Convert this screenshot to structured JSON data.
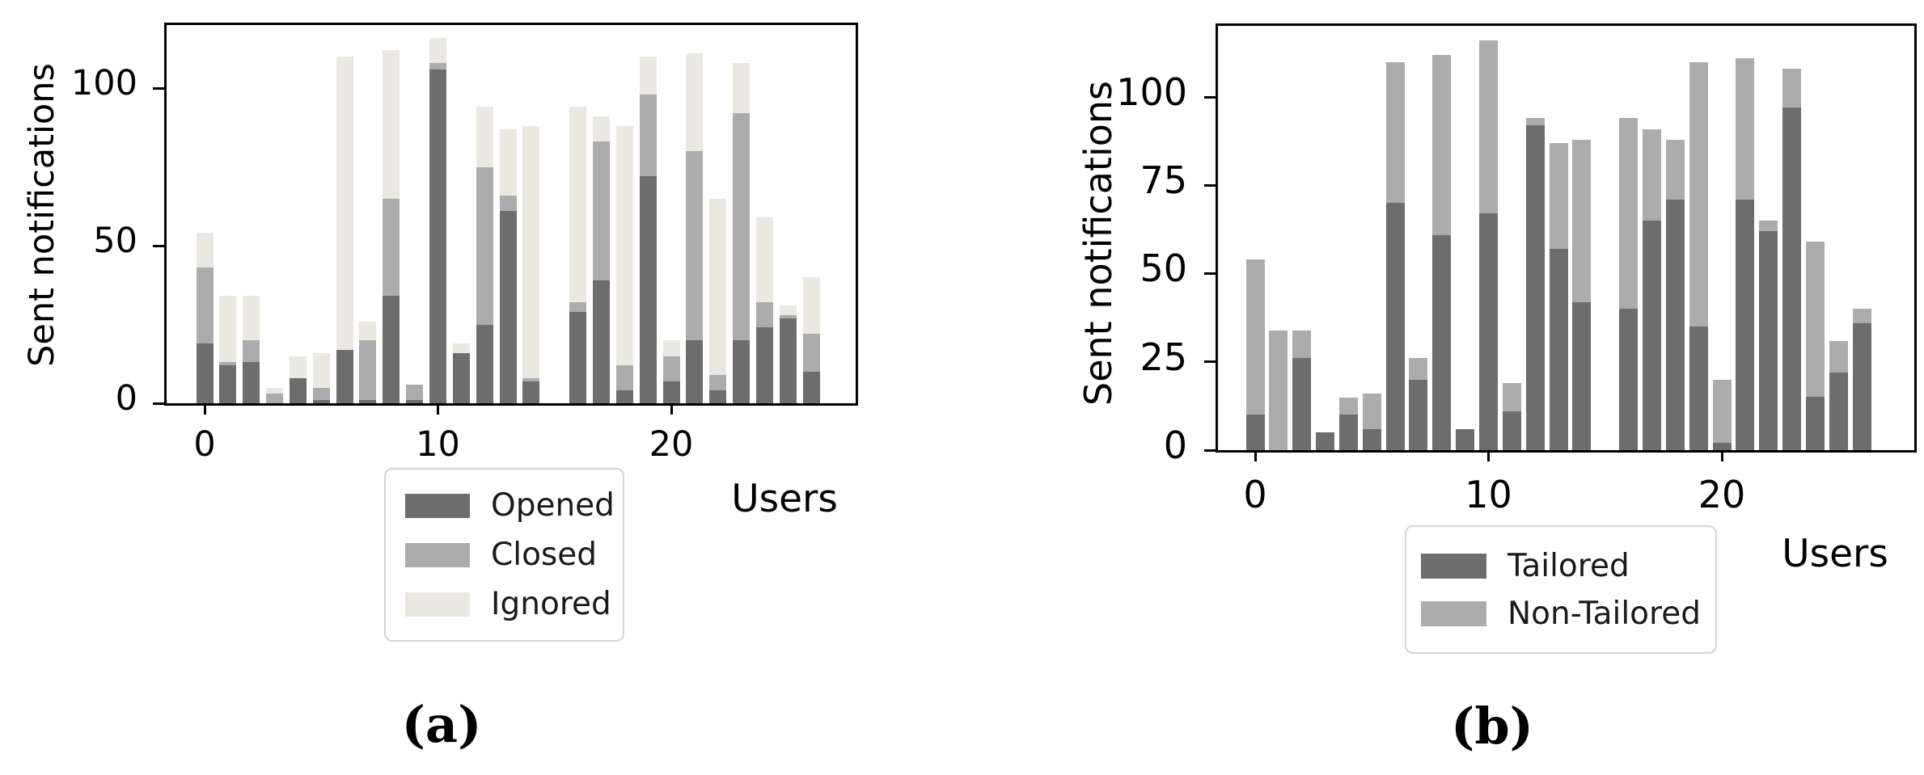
{
  "page": {
    "background": "#ffffff"
  },
  "chart_data": [
    {
      "type": "bar",
      "stacked": true,
      "title": "(a)",
      "xlabel": "Users",
      "ylabel": "Sent notifications",
      "x": [
        0,
        1,
        2,
        3,
        4,
        5,
        6,
        7,
        8,
        9,
        10,
        11,
        12,
        13,
        14,
        15,
        16,
        17,
        18,
        19,
        20,
        21,
        22,
        23,
        24,
        25,
        26
      ],
      "series": [
        {
          "name": "Opened",
          "color": "#6d6d6d",
          "values": [
            19,
            12,
            13,
            0,
            8,
            1,
            17,
            1,
            34,
            1,
            106,
            16,
            25,
            61,
            7,
            0,
            29,
            39,
            4,
            72,
            7,
            20,
            4,
            20,
            24,
            27,
            10
          ]
        },
        {
          "name": "Closed",
          "color": "#acacac",
          "values": [
            24,
            1,
            7,
            3,
            0,
            4,
            0,
            19,
            31,
            5,
            2,
            0,
            50,
            5,
            1,
            0,
            3,
            44,
            8,
            26,
            8,
            60,
            5,
            72,
            8,
            1,
            12
          ]
        },
        {
          "name": "Ignored",
          "color": "#eae8e1",
          "values": [
            11,
            21,
            14,
            2,
            7,
            11,
            93,
            6,
            47,
            0,
            8,
            3,
            19,
            21,
            80,
            0,
            62,
            8,
            76,
            12,
            5,
            31,
            56,
            16,
            27,
            3,
            18
          ]
        }
      ],
      "ylim": [
        0,
        121
      ],
      "ytick_values": [
        0,
        50,
        100
      ],
      "ytick_labels": [
        "0",
        "50",
        "100"
      ],
      "xtick_values": [
        0,
        10,
        20
      ],
      "xtick_labels": [
        "0",
        "10",
        "20"
      ],
      "grid": false,
      "legend_position": "below-left"
    },
    {
      "type": "bar",
      "stacked": true,
      "title": "(b)",
      "xlabel": "Users",
      "ylabel": "Sent notifications",
      "x": [
        0,
        1,
        2,
        3,
        4,
        5,
        6,
        7,
        8,
        9,
        10,
        11,
        12,
        13,
        14,
        15,
        16,
        17,
        18,
        19,
        20,
        21,
        22,
        23,
        24,
        25,
        26
      ],
      "series": [
        {
          "name": "Tailored",
          "color": "#6d6d6d",
          "values": [
            10,
            0,
            26,
            5,
            10,
            6,
            70,
            20,
            61,
            6,
            67,
            11,
            92,
            57,
            42,
            0,
            40,
            65,
            71,
            35,
            2,
            71,
            62,
            97,
            15,
            22,
            36
          ]
        },
        {
          "name": "Non-Tailored",
          "color": "#acacac",
          "values": [
            44,
            34,
            8,
            0,
            5,
            10,
            40,
            6,
            51,
            0,
            49,
            8,
            2,
            30,
            46,
            0,
            54,
            26,
            17,
            75,
            18,
            40,
            3,
            11,
            44,
            9,
            4
          ]
        }
      ],
      "ylim": [
        0,
        121
      ],
      "ytick_values": [
        0,
        25,
        50,
        75,
        100
      ],
      "ytick_labels": [
        "0",
        "25",
        "50",
        "75",
        "100"
      ],
      "xtick_values": [
        0,
        10,
        20
      ],
      "xtick_labels": [
        "0",
        "10",
        "20"
      ],
      "grid": false,
      "legend_position": "below-left"
    }
  ]
}
